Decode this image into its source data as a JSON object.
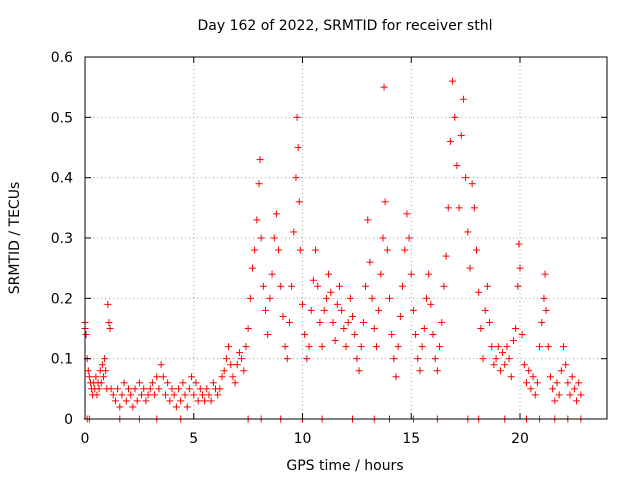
{
  "chart_data": {
    "type": "scatter",
    "title": "Day 162 of 2022, SRMTID for receiver sthl",
    "xlabel": "GPS time / hours",
    "ylabel": "SRMTID / TECUs",
    "xlim": [
      0,
      24
    ],
    "ylim": [
      0,
      0.6
    ],
    "xticks": [
      0,
      5,
      10,
      15,
      20
    ],
    "yticks": [
      0,
      0.1,
      0.2,
      0.3,
      0.4,
      0.5,
      0.6
    ],
    "xtick_labels": [
      "0",
      "5",
      "10",
      "15",
      "20"
    ],
    "ytick_labels": [
      "0",
      "0.1",
      "0.2",
      "0.3",
      "0.4",
      "0.5",
      "0.6"
    ],
    "grid": true,
    "marker": "+",
    "color": "#ff0000",
    "series": [
      {
        "name": "SRMTID",
        "points": [
          [
            0.0,
            0.16
          ],
          [
            0.0,
            0.15
          ],
          [
            0.05,
            0.14
          ],
          [
            0.1,
            0.1
          ],
          [
            0.15,
            0.08
          ],
          [
            0.2,
            0.07
          ],
          [
            0.25,
            0.06
          ],
          [
            0.3,
            0.05
          ],
          [
            0.35,
            0.04
          ],
          [
            0.4,
            0.06
          ],
          [
            0.45,
            0.05
          ],
          [
            0.5,
            0.07
          ],
          [
            0.55,
            0.04
          ],
          [
            0.6,
            0.06
          ],
          [
            0.65,
            0.05
          ],
          [
            0.7,
            0.08
          ],
          [
            0.75,
            0.06
          ],
          [
            0.8,
            0.09
          ],
          [
            0.85,
            0.07
          ],
          [
            0.9,
            0.1
          ],
          [
            0.95,
            0.08
          ],
          [
            1.0,
            0.05
          ],
          [
            1.05,
            0.19
          ],
          [
            1.1,
            0.16
          ],
          [
            1.15,
            0.15
          ],
          [
            1.2,
            0.05
          ],
          [
            1.3,
            0.04
          ],
          [
            1.4,
            0.03
          ],
          [
            1.5,
            0.05
          ],
          [
            1.6,
            0.02
          ],
          [
            1.7,
            0.04
          ],
          [
            1.8,
            0.06
          ],
          [
            1.9,
            0.03
          ],
          [
            2.0,
            0.05
          ],
          [
            2.1,
            0.04
          ],
          [
            2.2,
            0.02
          ],
          [
            2.3,
            0.05
          ],
          [
            2.4,
            0.03
          ],
          [
            2.5,
            0.06
          ],
          [
            2.6,
            0.04
          ],
          [
            2.7,
            0.05
          ],
          [
            2.8,
            0.03
          ],
          [
            2.9,
            0.04
          ],
          [
            3.0,
            0.05
          ],
          [
            3.1,
            0.06
          ],
          [
            3.2,
            0.04
          ],
          [
            3.3,
            0.07
          ],
          [
            3.4,
            0.05
          ],
          [
            3.5,
            0.09
          ],
          [
            3.6,
            0.07
          ],
          [
            3.7,
            0.04
          ],
          [
            3.8,
            0.06
          ],
          [
            3.9,
            0.03
          ],
          [
            4.0,
            0.05
          ],
          [
            4.1,
            0.04
          ],
          [
            4.2,
            0.02
          ],
          [
            4.3,
            0.05
          ],
          [
            4.4,
            0.03
          ],
          [
            4.5,
            0.06
          ],
          [
            4.6,
            0.04
          ],
          [
            4.7,
            0.02
          ],
          [
            4.8,
            0.05
          ],
          [
            4.9,
            0.07
          ],
          [
            5.0,
            0.04
          ],
          [
            5.1,
            0.06
          ],
          [
            5.2,
            0.03
          ],
          [
            5.3,
            0.05
          ],
          [
            5.4,
            0.04
          ],
          [
            5.5,
            0.03
          ],
          [
            5.6,
            0.05
          ],
          [
            5.7,
            0.04
          ],
          [
            5.8,
            0.03
          ],
          [
            5.9,
            0.06
          ],
          [
            6.0,
            0.05
          ],
          [
            6.1,
            0.04
          ],
          [
            6.2,
            0.05
          ],
          [
            6.3,
            0.07
          ],
          [
            6.4,
            0.08
          ],
          [
            6.5,
            0.1
          ],
          [
            6.6,
            0.12
          ],
          [
            6.7,
            0.09
          ],
          [
            6.8,
            0.07
          ],
          [
            6.9,
            0.06
          ],
          [
            7.0,
            0.09
          ],
          [
            7.1,
            0.11
          ],
          [
            7.2,
            0.1
          ],
          [
            7.3,
            0.08
          ],
          [
            7.4,
            0.12
          ],
          [
            7.5,
            0.15
          ],
          [
            7.6,
            0.2
          ],
          [
            7.7,
            0.25
          ],
          [
            7.8,
            0.28
          ],
          [
            7.9,
            0.33
          ],
          [
            8.0,
            0.39
          ],
          [
            8.05,
            0.43
          ],
          [
            8.1,
            0.3
          ],
          [
            8.2,
            0.22
          ],
          [
            8.3,
            0.18
          ],
          [
            8.4,
            0.14
          ],
          [
            8.5,
            0.2
          ],
          [
            8.6,
            0.24
          ],
          [
            8.7,
            0.3
          ],
          [
            8.8,
            0.34
          ],
          [
            8.9,
            0.28
          ],
          [
            9.0,
            0.22
          ],
          [
            9.1,
            0.17
          ],
          [
            9.2,
            0.12
          ],
          [
            9.3,
            0.1
          ],
          [
            9.4,
            0.16
          ],
          [
            9.5,
            0.22
          ],
          [
            9.6,
            0.31
          ],
          [
            9.7,
            0.4
          ],
          [
            9.75,
            0.5
          ],
          [
            9.8,
            0.45
          ],
          [
            9.85,
            0.36
          ],
          [
            9.9,
            0.28
          ],
          [
            10.0,
            0.19
          ],
          [
            10.1,
            0.14
          ],
          [
            10.2,
            0.1
          ],
          [
            10.3,
            0.12
          ],
          [
            10.4,
            0.18
          ],
          [
            10.5,
            0.23
          ],
          [
            10.6,
            0.28
          ],
          [
            10.7,
            0.22
          ],
          [
            10.8,
            0.16
          ],
          [
            10.9,
            0.12
          ],
          [
            11.0,
            0.18
          ],
          [
            11.1,
            0.2
          ],
          [
            11.2,
            0.24
          ],
          [
            11.3,
            0.21
          ],
          [
            11.4,
            0.16
          ],
          [
            11.5,
            0.13
          ],
          [
            11.6,
            0.19
          ],
          [
            11.7,
            0.22
          ],
          [
            11.8,
            0.18
          ],
          [
            11.9,
            0.15
          ],
          [
            12.0,
            0.12
          ],
          [
            12.1,
            0.16
          ],
          [
            12.2,
            0.2
          ],
          [
            12.3,
            0.17
          ],
          [
            12.4,
            0.14
          ],
          [
            12.5,
            0.1
          ],
          [
            12.6,
            0.08
          ],
          [
            12.7,
            0.12
          ],
          [
            12.8,
            0.16
          ],
          [
            12.9,
            0.22
          ],
          [
            13.0,
            0.33
          ],
          [
            13.1,
            0.26
          ],
          [
            13.2,
            0.2
          ],
          [
            13.3,
            0.15
          ],
          [
            13.4,
            0.12
          ],
          [
            13.5,
            0.18
          ],
          [
            13.6,
            0.24
          ],
          [
            13.7,
            0.3
          ],
          [
            13.75,
            0.55
          ],
          [
            13.8,
            0.36
          ],
          [
            13.9,
            0.28
          ],
          [
            14.0,
            0.2
          ],
          [
            14.1,
            0.14
          ],
          [
            14.2,
            0.1
          ],
          [
            14.3,
            0.07
          ],
          [
            14.4,
            0.12
          ],
          [
            14.5,
            0.17
          ],
          [
            14.6,
            0.22
          ],
          [
            14.7,
            0.28
          ],
          [
            14.8,
            0.34
          ],
          [
            14.9,
            0.3
          ],
          [
            15.0,
            0.24
          ],
          [
            15.1,
            0.18
          ],
          [
            15.2,
            0.14
          ],
          [
            15.3,
            0.1
          ],
          [
            15.4,
            0.08
          ],
          [
            15.5,
            0.12
          ],
          [
            15.6,
            0.15
          ],
          [
            15.7,
            0.2
          ],
          [
            15.8,
            0.24
          ],
          [
            15.9,
            0.19
          ],
          [
            16.0,
            0.14
          ],
          [
            16.1,
            0.1
          ],
          [
            16.2,
            0.08
          ],
          [
            16.3,
            0.12
          ],
          [
            16.4,
            0.16
          ],
          [
            16.5,
            0.22
          ],
          [
            16.6,
            0.27
          ],
          [
            16.7,
            0.35
          ],
          [
            16.8,
            0.46
          ],
          [
            16.9,
            0.56
          ],
          [
            17.0,
            0.5
          ],
          [
            17.1,
            0.42
          ],
          [
            17.2,
            0.35
          ],
          [
            17.3,
            0.47
          ],
          [
            17.4,
            0.53
          ],
          [
            17.5,
            0.4
          ],
          [
            17.6,
            0.31
          ],
          [
            17.7,
            0.25
          ],
          [
            17.8,
            0.39
          ],
          [
            17.9,
            0.35
          ],
          [
            18.0,
            0.28
          ],
          [
            18.1,
            0.21
          ],
          [
            18.2,
            0.15
          ],
          [
            18.3,
            0.1
          ],
          [
            18.4,
            0.18
          ],
          [
            18.5,
            0.22
          ],
          [
            18.6,
            0.16
          ],
          [
            18.7,
            0.12
          ],
          [
            18.8,
            0.09
          ],
          [
            18.9,
            0.1
          ],
          [
            19.0,
            0.12
          ],
          [
            19.1,
            0.08
          ],
          [
            19.2,
            0.11
          ],
          [
            19.3,
            0.09
          ],
          [
            19.4,
            0.12
          ],
          [
            19.5,
            0.1
          ],
          [
            19.6,
            0.07
          ],
          [
            19.7,
            0.13
          ],
          [
            19.8,
            0.15
          ],
          [
            19.9,
            0.22
          ],
          [
            19.95,
            0.29
          ],
          [
            20.0,
            0.25
          ],
          [
            20.1,
            0.14
          ],
          [
            20.2,
            0.09
          ],
          [
            20.3,
            0.06
          ],
          [
            20.4,
            0.08
          ],
          [
            20.5,
            0.05
          ],
          [
            20.6,
            0.07
          ],
          [
            20.7,
            0.04
          ],
          [
            20.8,
            0.06
          ],
          [
            20.9,
            0.12
          ],
          [
            21.0,
            0.16
          ],
          [
            21.1,
            0.2
          ],
          [
            21.15,
            0.24
          ],
          [
            21.2,
            0.18
          ],
          [
            21.3,
            0.12
          ],
          [
            21.4,
            0.07
          ],
          [
            21.5,
            0.05
          ],
          [
            21.6,
            0.03
          ],
          [
            21.7,
            0.06
          ],
          [
            21.8,
            0.04
          ],
          [
            21.9,
            0.08
          ],
          [
            22.0,
            0.12
          ],
          [
            22.1,
            0.09
          ],
          [
            22.2,
            0.06
          ],
          [
            22.3,
            0.04
          ],
          [
            22.4,
            0.07
          ],
          [
            22.5,
            0.05
          ],
          [
            22.6,
            0.03
          ],
          [
            22.7,
            0.06
          ],
          [
            22.8,
            0.04
          ],
          [
            0.1,
            0.0
          ],
          [
            0.2,
            0.0
          ],
          [
            1.6,
            0.0
          ],
          [
            2.5,
            0.0
          ],
          [
            3.3,
            0.0
          ],
          [
            4.4,
            0.0
          ],
          [
            7.5,
            0.0
          ],
          [
            8.1,
            0.0
          ],
          [
            9.0,
            0.0
          ],
          [
            10.0,
            0.0
          ],
          [
            10.9,
            0.0
          ],
          [
            12.3,
            0.0
          ],
          [
            13.3,
            0.0
          ],
          [
            14.0,
            0.0
          ],
          [
            15.1,
            0.0
          ],
          [
            16.2,
            0.0
          ],
          [
            17.6,
            0.0
          ],
          [
            18.1,
            0.0
          ],
          [
            19.3,
            0.0
          ],
          [
            20.3,
            0.0
          ],
          [
            20.9,
            0.0
          ],
          [
            21.6,
            0.0
          ],
          [
            22.2,
            0.0
          ],
          [
            22.8,
            0.0
          ]
        ]
      }
    ]
  }
}
